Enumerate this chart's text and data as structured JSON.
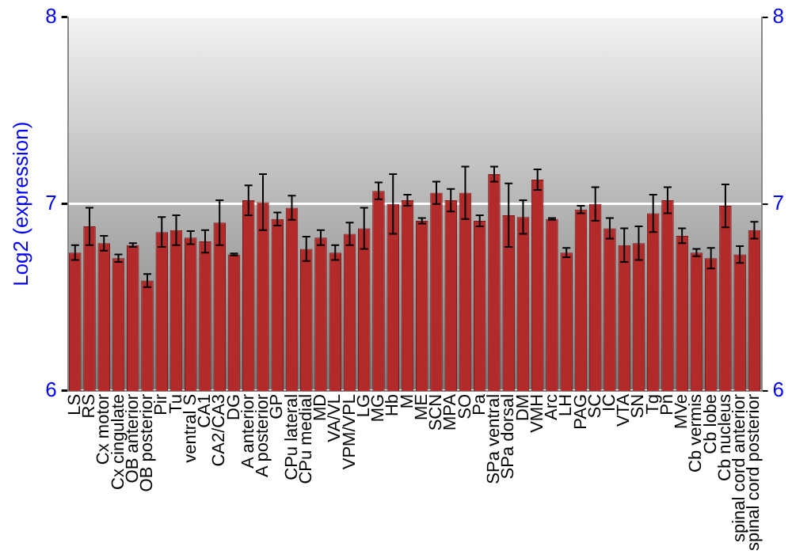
{
  "chart_data": {
    "type": "bar",
    "ylabel": "Log2 (expression)",
    "categories": [
      "LS",
      "RS",
      "Cx motor",
      "Cx cingulate",
      "OB anterior",
      "OB posterior",
      "Pir",
      "Tu",
      "ventral S",
      "CA1",
      "CA2/CA3",
      "DG",
      "A anterior",
      "A posterior",
      "GP",
      "CPu lateral",
      "CPu medial",
      "MD",
      "VA/VL",
      "VPM/VPL",
      "LG",
      "MG",
      "Hb",
      "M",
      "ME",
      "SCN",
      "MPA",
      "SO",
      "Pa",
      "SPa ventral",
      "SPa dorsal",
      "DM",
      "VMH",
      "Arc",
      "LH",
      "PAG",
      "SC",
      "IC",
      "VTA",
      "SN",
      "Tg",
      "Pn",
      "MVe",
      "Cb vermis",
      "Cb lobe",
      "Cb nucleus",
      "spinal cord anterior",
      "spinal cord posterior"
    ],
    "values": [
      6.74,
      6.88,
      6.79,
      6.71,
      6.78,
      6.59,
      6.85,
      6.86,
      6.82,
      6.8,
      6.9,
      6.73,
      7.02,
      7.01,
      6.92,
      6.98,
      6.76,
      6.82,
      6.74,
      6.84,
      6.87,
      7.07,
      7.0,
      7.02,
      6.91,
      7.06,
      7.02,
      7.06,
      6.91,
      7.16,
      6.94,
      6.93,
      7.13,
      6.92,
      6.74,
      6.97,
      7.0,
      6.87,
      6.78,
      6.79,
      6.95,
      7.02,
      6.83,
      6.74,
      6.71,
      6.99,
      6.73,
      6.86
    ],
    "errors": [
      0.04,
      0.1,
      0.04,
      0.02,
      0.01,
      0.035,
      0.08,
      0.08,
      0.035,
      0.06,
      0.12,
      0.005,
      0.08,
      0.15,
      0.035,
      0.065,
      0.065,
      0.04,
      0.04,
      0.06,
      0.11,
      0.045,
      0.16,
      0.03,
      0.015,
      0.06,
      0.06,
      0.14,
      0.03,
      0.04,
      0.17,
      0.09,
      0.055,
      0.005,
      0.025,
      0.02,
      0.09,
      0.055,
      0.09,
      0.09,
      0.1,
      0.07,
      0.04,
      0.02,
      0.055,
      0.115,
      0.045,
      0.045
    ],
    "color": "#b22a2a",
    "ylim": [
      6,
      8
    ],
    "yticks": [
      6,
      7,
      8
    ],
    "y2lim": [
      6,
      8
    ],
    "y2ticks": [
      6,
      7,
      8
    ],
    "grid": "y"
  }
}
